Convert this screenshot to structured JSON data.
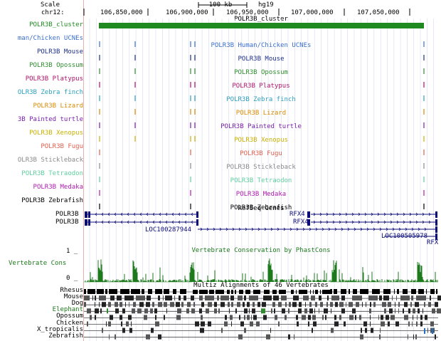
{
  "header": {
    "scale_label": "Scale",
    "scale_bar_text": "100 kb",
    "assembly": "hg19",
    "chrom_label": "chr12:",
    "ticks": [
      "106,850,000",
      "106,900,000",
      "106,950,000",
      "107,000,000",
      "107,050,000"
    ],
    "cluster_center": "POLR3B_cluster"
  },
  "colors": {
    "cluster_green": "#1f8a1f",
    "human_chicken": "#3a6fcf",
    "mouse": "#1c2e8a",
    "opossum": "#2f8f2f",
    "platypus": "#b0126a",
    "zebra_finch": "#2a9fbf",
    "lizard": "#d98a00",
    "painted_turtle": "#7a1fb0",
    "xenopus": "#c8b000",
    "fugu": "#e06050",
    "stickleback": "#8a8a8a",
    "tetraodon": "#5fcf9f",
    "medaka": "#b01ab0",
    "zebrafish": "#000000",
    "refseq": "#0c0c78",
    "conservation": "#1c7a1c",
    "multiz_green": "#2e8b2e"
  },
  "tracks": [
    {
      "left": "POLR3B_cluster",
      "center": "",
      "color_key": "cluster_green"
    },
    {
      "left": "man/Chicken UCNEs",
      "center": "POLR3B Human/Chicken UCNEs",
      "color_key": "human_chicken"
    },
    {
      "left": "POLR3B Mouse",
      "center": "POLR3B Mouse",
      "color_key": "mouse"
    },
    {
      "left": "POLR3B Opossum",
      "center": "POLR3B Opossum",
      "color_key": "opossum"
    },
    {
      "left": "POLR3B Platypus",
      "center": "POLR3B Platypus",
      "color_key": "platypus"
    },
    {
      "left": "OLR3B Zebra finch",
      "center": "POLR3B Zebra finch",
      "color_key": "zebra_finch"
    },
    {
      "left": "POLR3B Lizard",
      "center": "POLR3B Lizard",
      "color_key": "lizard"
    },
    {
      "left": "3B Painted turtle",
      "center": "POLR3B Painted turtle",
      "color_key": "painted_turtle"
    },
    {
      "left": "POLR3B Xenopus",
      "center": "POLR3B Xenopus",
      "color_key": "xenopus"
    },
    {
      "left": "POLR3B Fugu",
      "center": "POLR3B Fugu",
      "color_key": "fugu"
    },
    {
      "left": "OLR3B Stickleback",
      "center": "POLR3B Stickleback",
      "color_key": "stickleback"
    },
    {
      "left": "POLR3B Tetraodon",
      "center": "POLR3B Tetraodon",
      "color_key": "tetraodon"
    },
    {
      "left": "POLR3B Medaka",
      "center": "POLR3B Medaka",
      "color_key": "medaka"
    },
    {
      "left": "POLR3B Zebrafish",
      "center": "POLR3B Zebrafish",
      "color_key": "zebrafish"
    }
  ],
  "refseq": {
    "title": "RefSeq Genes",
    "left_labels": [
      "POLR3B",
      "POLR3B"
    ],
    "rfx4_labels": [
      "RFX4",
      "RFX4"
    ],
    "loc1": "LOC100287944",
    "loc2": "LOC100505978",
    "rfx_short": "RFX"
  },
  "conservation": {
    "title": "Vertebrate Conservation by PhastCons",
    "left_label": "Vertebrate Cons",
    "max_tick": "1 _",
    "min_tick": "0 _"
  },
  "multiz": {
    "title": "Multiz Alignments of 46 Vertebrates",
    "species": [
      "Rhesus",
      "Mouse",
      "Dog",
      "Elephant",
      "Opossum",
      "Chicken",
      "X_tropicalis",
      "Zebrafish"
    ]
  }
}
